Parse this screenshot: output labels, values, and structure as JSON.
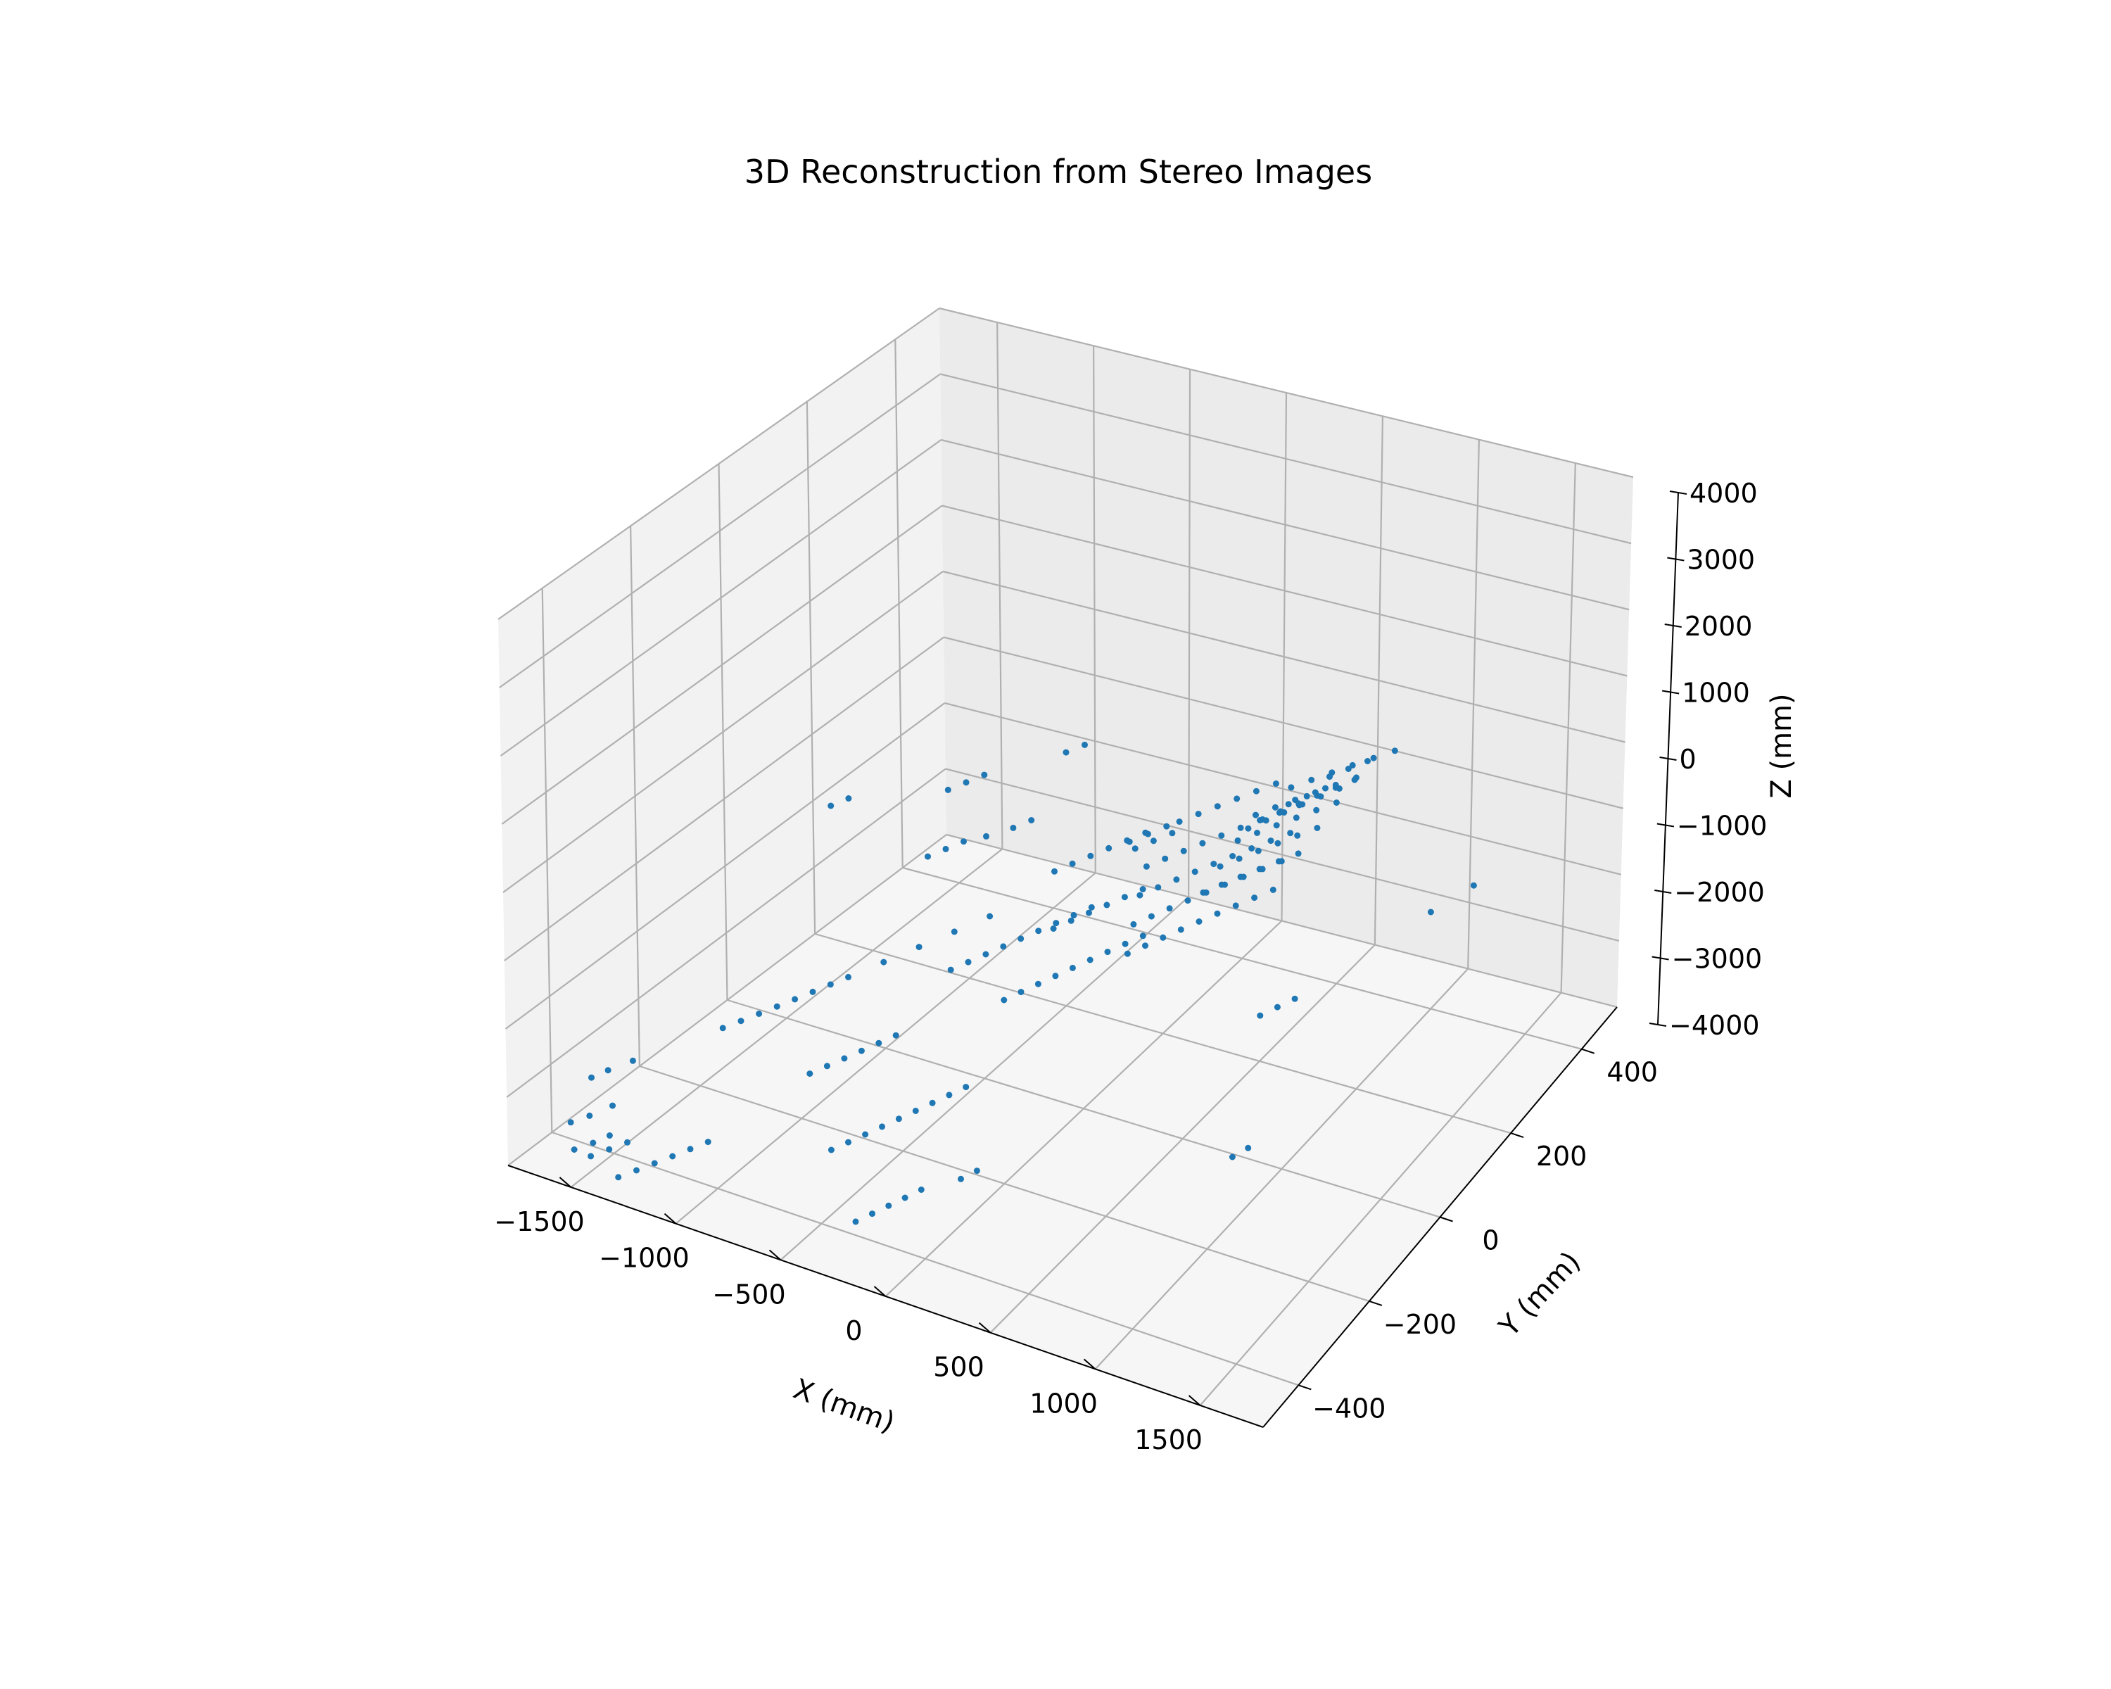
{
  "chart_data": {
    "type": "scatter3d",
    "title": "3D Reconstruction from Stereo Images",
    "xlabel": "X (mm)",
    "ylabel": "Y (mm)",
    "zlabel": "Z (mm)",
    "xlim": [
      -1800,
      1800
    ],
    "ylim": [
      -500,
      500
    ],
    "zlim": [
      -4000,
      4000
    ],
    "xticks": [
      -1500,
      -1000,
      -500,
      0,
      500,
      1000,
      1500
    ],
    "xtick_labels": [
      "−1500",
      "−1000",
      "−500",
      "0",
      "500",
      "1000",
      "1500"
    ],
    "yticks": [
      -400,
      -200,
      0,
      200,
      400
    ],
    "ytick_labels": [
      "−400",
      "−200",
      "0",
      "200",
      "400"
    ],
    "zticks": [
      -4000,
      -3000,
      -2000,
      -1000,
      0,
      1000,
      2000,
      3000,
      4000
    ],
    "ztick_labels": [
      "−4000",
      "−3000",
      "−2000",
      "−1000",
      "0",
      "1000",
      "2000",
      "3000",
      "4000"
    ],
    "grid": true,
    "marker_color": "#1f77b4",
    "pane_colors": {
      "left": "#f2f2f2",
      "back": "#ebebeb",
      "floor": "#f6f6f6"
    },
    "series": [
      {
        "points": [
          [
            -1750,
            -380,
            -3900
          ],
          [
            -1700,
            -360,
            -3850
          ],
          [
            -1650,
            -330,
            -3800
          ],
          [
            -1820,
            -300,
            -3700
          ],
          [
            -1780,
            -280,
            -3650
          ],
          [
            -1720,
            -250,
            -3600
          ],
          [
            -1650,
            -420,
            -4000
          ],
          [
            -1600,
            -400,
            -3950
          ],
          [
            -1560,
            -380,
            -3900
          ],
          [
            -1500,
            -450,
            -3800
          ],
          [
            -1450,
            -430,
            -3750
          ],
          [
            -1400,
            -410,
            -3700
          ],
          [
            -1350,
            -460,
            -3900
          ],
          [
            -1300,
            -440,
            -3850
          ],
          [
            -1250,
            -420,
            -3800
          ],
          [
            -1200,
            -400,
            -3750
          ],
          [
            -1150,
            -380,
            -3700
          ],
          [
            -1100,
            -360,
            -3650
          ],
          [
            -1550,
            -120,
            -3600
          ],
          [
            -1500,
            -100,
            -3550
          ],
          [
            -1450,
            -80,
            -3500
          ],
          [
            -1400,
            -60,
            -3450
          ],
          [
            -1350,
            -40,
            -3400
          ],
          [
            -1300,
            -20,
            -3350
          ],
          [
            -1250,
            0,
            -3300
          ],
          [
            -1200,
            20,
            -3250
          ],
          [
            -1100,
            60,
            -3150
          ],
          [
            -1000,
            100,
            -3050
          ],
          [
            -900,
            140,
            -2950
          ],
          [
            -800,
            180,
            -2850
          ],
          [
            -1300,
            250,
            -2700
          ],
          [
            -1250,
            270,
            -2650
          ],
          [
            -1200,
            290,
            -2600
          ],
          [
            -1100,
            300,
            -2500
          ],
          [
            -1000,
            320,
            -2400
          ],
          [
            -950,
            340,
            -2350
          ],
          [
            -1500,
            380,
            -2500
          ],
          [
            -1450,
            400,
            -2450
          ],
          [
            -1400,
            420,
            -2400
          ],
          [
            -900,
            -200,
            -3300
          ],
          [
            -850,
            -180,
            -3250
          ],
          [
            -800,
            -160,
            -3200
          ],
          [
            -750,
            -140,
            -3150
          ],
          [
            -700,
            -120,
            -3100
          ],
          [
            -650,
            -100,
            -3050
          ],
          [
            -600,
            -300,
            -3600
          ],
          [
            -550,
            -280,
            -3550
          ],
          [
            -500,
            -260,
            -3500
          ],
          [
            -450,
            -240,
            -3450
          ],
          [
            -400,
            -220,
            -3400
          ],
          [
            -350,
            -200,
            -3350
          ],
          [
            -300,
            -180,
            -3300
          ],
          [
            -250,
            -160,
            -3250
          ],
          [
            -200,
            -140,
            -3200
          ],
          [
            -700,
            50,
            -2900
          ],
          [
            -650,
            70,
            -2850
          ],
          [
            -600,
            90,
            -2800
          ],
          [
            -550,
            110,
            -2750
          ],
          [
            -500,
            130,
            -2700
          ],
          [
            -450,
            150,
            -2650
          ],
          [
            -400,
            170,
            -2600
          ],
          [
            -350,
            190,
            -2550
          ],
          [
            -300,
            210,
            -2500
          ],
          [
            -600,
            250,
            -2400
          ],
          [
            -550,
            270,
            -2350
          ],
          [
            -500,
            290,
            -2300
          ],
          [
            -450,
            310,
            -2250
          ],
          [
            -400,
            330,
            -2200
          ],
          [
            -350,
            350,
            -2150
          ],
          [
            -300,
            300,
            -2000
          ],
          [
            -250,
            320,
            -1950
          ],
          [
            -200,
            340,
            -1900
          ],
          [
            -150,
            260,
            -1800
          ],
          [
            -100,
            280,
            -1750
          ],
          [
            -50,
            300,
            -1700
          ],
          [
            -200,
            100,
            -2200
          ],
          [
            -150,
            120,
            -2150
          ],
          [
            -100,
            140,
            -2100
          ],
          [
            -50,
            160,
            -2050
          ],
          [
            0,
            180,
            -2000
          ],
          [
            50,
            200,
            -1950
          ],
          [
            -100,
            -50,
            -2400
          ],
          [
            -50,
            -30,
            -2350
          ],
          [
            0,
            -10,
            -2300
          ],
          [
            50,
            10,
            -2250
          ],
          [
            100,
            30,
            -2200
          ],
          [
            150,
            50,
            -2150
          ],
          [
            200,
            70,
            -2100
          ],
          [
            250,
            90,
            -2050
          ],
          [
            300,
            110,
            -2000
          ],
          [
            0,
            300,
            -1500
          ],
          [
            50,
            320,
            -1450
          ],
          [
            100,
            340,
            -1400
          ],
          [
            150,
            360,
            -1350
          ],
          [
            200,
            380,
            -1300
          ],
          [
            250,
            400,
            -1250
          ],
          [
            100,
            200,
            -1600
          ],
          [
            150,
            220,
            -1550
          ],
          [
            200,
            240,
            -1500
          ],
          [
            250,
            260,
            -1450
          ],
          [
            300,
            280,
            -1400
          ],
          [
            350,
            300,
            -1350
          ],
          [
            400,
            320,
            -1300
          ],
          [
            450,
            340,
            -1250
          ],
          [
            500,
            360,
            -1200
          ],
          [
            200,
            150,
            -1700
          ],
          [
            250,
            170,
            -1650
          ],
          [
            300,
            190,
            -1600
          ],
          [
            350,
            210,
            -1550
          ],
          [
            400,
            230,
            -1500
          ],
          [
            450,
            250,
            -1450
          ],
          [
            500,
            270,
            -1400
          ],
          [
            550,
            290,
            -1350
          ],
          [
            600,
            310,
            -1300
          ],
          [
            300,
            100,
            -1800
          ],
          [
            350,
            120,
            -1750
          ],
          [
            400,
            140,
            -1700
          ],
          [
            450,
            160,
            -1650
          ],
          [
            500,
            180,
            -1600
          ],
          [
            550,
            200,
            -1550
          ],
          [
            600,
            220,
            -1500
          ],
          [
            650,
            240,
            -1450
          ],
          [
            700,
            260,
            -1400
          ],
          [
            400,
            50,
            -1900
          ],
          [
            450,
            70,
            -1850
          ],
          [
            500,
            90,
            -1800
          ],
          [
            550,
            110,
            -1750
          ],
          [
            600,
            130,
            -1700
          ],
          [
            650,
            150,
            -1650
          ],
          [
            700,
            170,
            -1600
          ],
          [
            750,
            190,
            -1550
          ],
          [
            800,
            210,
            -1500
          ],
          [
            450,
            300,
            -1100
          ],
          [
            500,
            320,
            -1050
          ],
          [
            550,
            340,
            -1000
          ],
          [
            600,
            360,
            -950
          ],
          [
            650,
            380,
            -900
          ],
          [
            700,
            400,
            -850
          ],
          [
            500,
            250,
            -1200
          ],
          [
            550,
            270,
            -1150
          ],
          [
            600,
            290,
            -1100
          ],
          [
            650,
            310,
            -1050
          ],
          [
            700,
            330,
            -1000
          ],
          [
            750,
            350,
            -950
          ],
          [
            550,
            200,
            -1300
          ],
          [
            600,
            220,
            -1250
          ],
          [
            650,
            240,
            -1200
          ],
          [
            700,
            260,
            -1150
          ],
          [
            750,
            280,
            -1100
          ],
          [
            800,
            300,
            -1050
          ],
          [
            600,
            150,
            -1400
          ],
          [
            650,
            170,
            -1350
          ],
          [
            700,
            190,
            -1300
          ],
          [
            750,
            210,
            -1250
          ],
          [
            800,
            230,
            -1200
          ],
          [
            850,
            250,
            -1150
          ],
          [
            500,
            350,
            -900
          ],
          [
            550,
            370,
            -850
          ],
          [
            600,
            390,
            -800
          ],
          [
            650,
            410,
            -750
          ],
          [
            700,
            430,
            -700
          ],
          [
            750,
            450,
            -650
          ],
          [
            580,
            320,
            -950
          ],
          [
            620,
            340,
            -900
          ],
          [
            660,
            360,
            -850
          ],
          [
            560,
            280,
            -1000
          ],
          [
            600,
            300,
            -950
          ],
          [
            640,
            320,
            -900
          ],
          [
            680,
            340,
            -850
          ],
          [
            720,
            360,
            -800
          ],
          [
            760,
            380,
            -750
          ],
          [
            540,
            260,
            -1050
          ],
          [
            580,
            280,
            -1000
          ],
          [
            620,
            300,
            -950
          ],
          [
            660,
            320,
            -900
          ],
          [
            700,
            340,
            -850
          ],
          [
            740,
            360,
            -800
          ],
          [
            620,
            380,
            -800
          ],
          [
            660,
            400,
            -750
          ],
          [
            700,
            420,
            -700
          ],
          [
            900,
            100,
            -2600
          ],
          [
            950,
            120,
            -2550
          ],
          [
            1000,
            140,
            -2500
          ],
          [
            1100,
            -100,
            -3300
          ],
          [
            1150,
            -80,
            -3250
          ],
          [
            1200,
            350,
            -2200
          ],
          [
            1300,
            400,
            -2000
          ],
          [
            -300,
            -400,
            -3800
          ],
          [
            -250,
            -380,
            -3750
          ],
          [
            -200,
            -360,
            -3700
          ],
          [
            -150,
            -340,
            -3650
          ],
          [
            -100,
            -320,
            -3600
          ],
          [
            100,
            -300,
            -3400
          ],
          [
            150,
            -280,
            -3350
          ],
          [
            -1700,
            200,
            -2000
          ],
          [
            -1650,
            220,
            -1950
          ],
          [
            -900,
            400,
            -1600
          ],
          [
            -850,
            420,
            -1550
          ]
        ]
      }
    ]
  }
}
